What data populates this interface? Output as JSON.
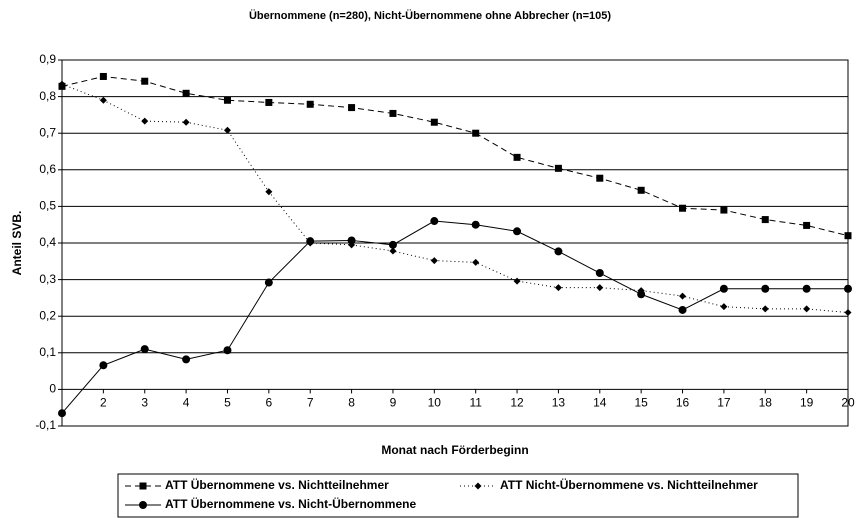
{
  "chart_data": {
    "type": "line",
    "title": "Übernommene (n=280), Nicht-Übernommene ohne Abbrecher (n=105)",
    "x_label": "Monat nach Förderbeginn",
    "y_label": "Anteil SVB.",
    "x": [
      1,
      2,
      3,
      4,
      5,
      6,
      7,
      8,
      9,
      10,
      11,
      12,
      13,
      14,
      15,
      16,
      17,
      18,
      19,
      20
    ],
    "xlim": [
      1,
      20
    ],
    "xticks": [
      2,
      3,
      4,
      5,
      6,
      7,
      8,
      9,
      10,
      11,
      12,
      13,
      14,
      15,
      16,
      17,
      18,
      19,
      20
    ],
    "ylim": [
      -0.1,
      0.9
    ],
    "yticks": [
      {
        "value": -0.1,
        "label": "-0,1"
      },
      0,
      {
        "value": 0.1,
        "label": "0,1"
      },
      {
        "value": 0.2,
        "label": "0,2"
      },
      {
        "value": 0.3,
        "label": "0,3"
      },
      {
        "value": 0.4,
        "label": "0,4"
      },
      {
        "value": 0.5,
        "label": "0,5"
      },
      {
        "value": 0.6,
        "label": "0,6"
      },
      {
        "value": 0.7,
        "label": "0,7"
      },
      {
        "value": 0.8,
        "label": "0,8"
      },
      {
        "value": 0.9,
        "label": "0,9"
      }
    ],
    "grid": true,
    "legend": "bottom",
    "series": [
      {
        "name": "ATT Übernommene vs. Nichtteilnehmer",
        "color": "#000000",
        "marker": "square",
        "dash": "6,4",
        "values": [
          0.828,
          0.855,
          0.842,
          0.809,
          0.79,
          0.784,
          0.779,
          0.77,
          0.754,
          0.73,
          0.7,
          0.634,
          0.604,
          0.577,
          0.544,
          0.495,
          0.49,
          0.464,
          0.448,
          0.42
        ]
      },
      {
        "name": "ATT Nicht-Übernommene vs. Nichtteilnehmer",
        "color": "#000000",
        "marker": "diamond",
        "dash": "1,3",
        "values": [
          0.834,
          0.79,
          0.733,
          0.73,
          0.708,
          0.54,
          0.4,
          0.395,
          0.378,
          0.352,
          0.347,
          0.296,
          0.278,
          0.278,
          0.27,
          0.255,
          0.226,
          0.22,
          0.22,
          0.21
        ]
      },
      {
        "name": "ATT Übernommene vs. Nicht-Übernommene",
        "color": "#000000",
        "marker": "circle",
        "dash": "none",
        "values": [
          -0.065,
          0.066,
          0.11,
          0.082,
          0.107,
          0.292,
          0.405,
          0.407,
          0.395,
          0.46,
          0.45,
          0.432,
          0.377,
          0.318,
          0.26,
          0.217,
          0.275,
          0.275,
          0.275,
          0.275
        ]
      }
    ]
  }
}
